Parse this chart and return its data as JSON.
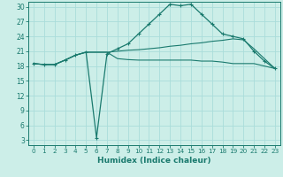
{
  "xlabel": "Humidex (Indice chaleur)",
  "bg_color": "#cceee8",
  "grid_color": "#aaddda",
  "line_color": "#1a7a6e",
  "xlim": [
    -0.5,
    23.5
  ],
  "ylim": [
    2,
    31
  ],
  "xticks": [
    0,
    1,
    2,
    3,
    4,
    5,
    6,
    7,
    8,
    9,
    10,
    11,
    12,
    13,
    14,
    15,
    16,
    17,
    18,
    19,
    20,
    21,
    22,
    23
  ],
  "yticks": [
    3,
    6,
    9,
    12,
    15,
    18,
    21,
    24,
    27,
    30
  ],
  "series1_x": [
    0,
    1,
    2,
    3,
    4,
    5,
    6,
    7,
    8,
    9,
    10,
    11,
    12,
    13,
    14,
    15,
    16,
    17,
    18,
    19,
    20,
    21,
    22,
    23
  ],
  "series1_y": [
    18.5,
    18.3,
    18.3,
    19.2,
    20.2,
    20.8,
    3.5,
    20.5,
    21.5,
    22.5,
    24.5,
    26.5,
    28.5,
    30.5,
    30.2,
    30.5,
    28.5,
    26.5,
    24.5,
    24.0,
    23.5,
    21.0,
    19.0,
    17.5
  ],
  "series2_x": [
    0,
    1,
    2,
    3,
    4,
    5,
    6,
    7,
    8,
    9,
    10,
    11,
    12,
    13,
    14,
    15,
    16,
    17,
    18,
    19,
    20,
    21,
    22,
    23
  ],
  "series2_y": [
    18.5,
    18.3,
    18.3,
    19.2,
    20.2,
    20.8,
    20.8,
    20.8,
    21.0,
    21.2,
    21.3,
    21.5,
    21.7,
    22.0,
    22.2,
    22.5,
    22.7,
    23.0,
    23.2,
    23.5,
    23.3,
    21.5,
    19.5,
    17.5
  ],
  "series3_x": [
    0,
    1,
    2,
    3,
    4,
    5,
    6,
    7,
    8,
    9,
    10,
    11,
    12,
    13,
    14,
    15,
    16,
    17,
    18,
    19,
    20,
    21,
    22,
    23
  ],
  "series3_y": [
    18.5,
    18.3,
    18.3,
    19.2,
    20.2,
    20.8,
    20.8,
    20.8,
    19.5,
    19.3,
    19.2,
    19.2,
    19.2,
    19.2,
    19.2,
    19.2,
    19.0,
    19.0,
    18.8,
    18.5,
    18.5,
    18.5,
    18.0,
    17.5
  ]
}
